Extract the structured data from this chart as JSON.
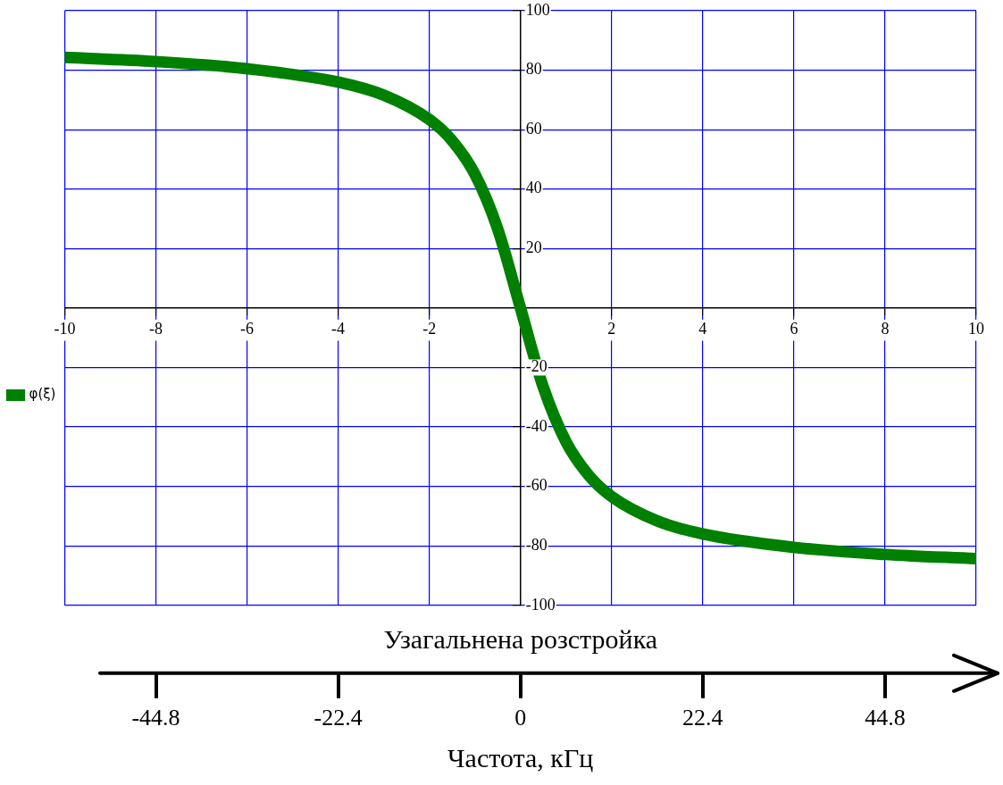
{
  "chart_data": {
    "type": "line",
    "xlabel": "Узагальнена розстройка",
    "x2label": "Частота, кГц",
    "x": [
      -10,
      -8,
      -6,
      -4,
      -3,
      -2,
      -1.5,
      -1,
      -0.5,
      0,
      0.5,
      1,
      1.5,
      2,
      3,
      4,
      6,
      8,
      10
    ],
    "series": [
      {
        "name": "φ(ξ)",
        "color": "#008000",
        "values": [
          84.3,
          82.9,
          80.5,
          76.0,
          71.6,
          63.4,
          56.3,
          45.0,
          26.6,
          0,
          -26.6,
          -45.0,
          -56.3,
          -63.4,
          -71.6,
          -76.0,
          -80.5,
          -82.9,
          -84.3
        ]
      }
    ],
    "xlim": [
      -10,
      10
    ],
    "xticks": [
      -10,
      -8,
      -6,
      -4,
      -2,
      2,
      4,
      6,
      8,
      10
    ],
    "ylim": [
      -100,
      100
    ],
    "yticks": [
      -100,
      -80,
      -60,
      -40,
      -20,
      20,
      40,
      60,
      80,
      100
    ],
    "x2lim": [
      -56,
      56
    ],
    "x2ticks": [
      -44.8,
      -22.4,
      0,
      22.4,
      44.8
    ],
    "grid": true,
    "legend": "left",
    "marker": "none",
    "line_style": "solid"
  }
}
